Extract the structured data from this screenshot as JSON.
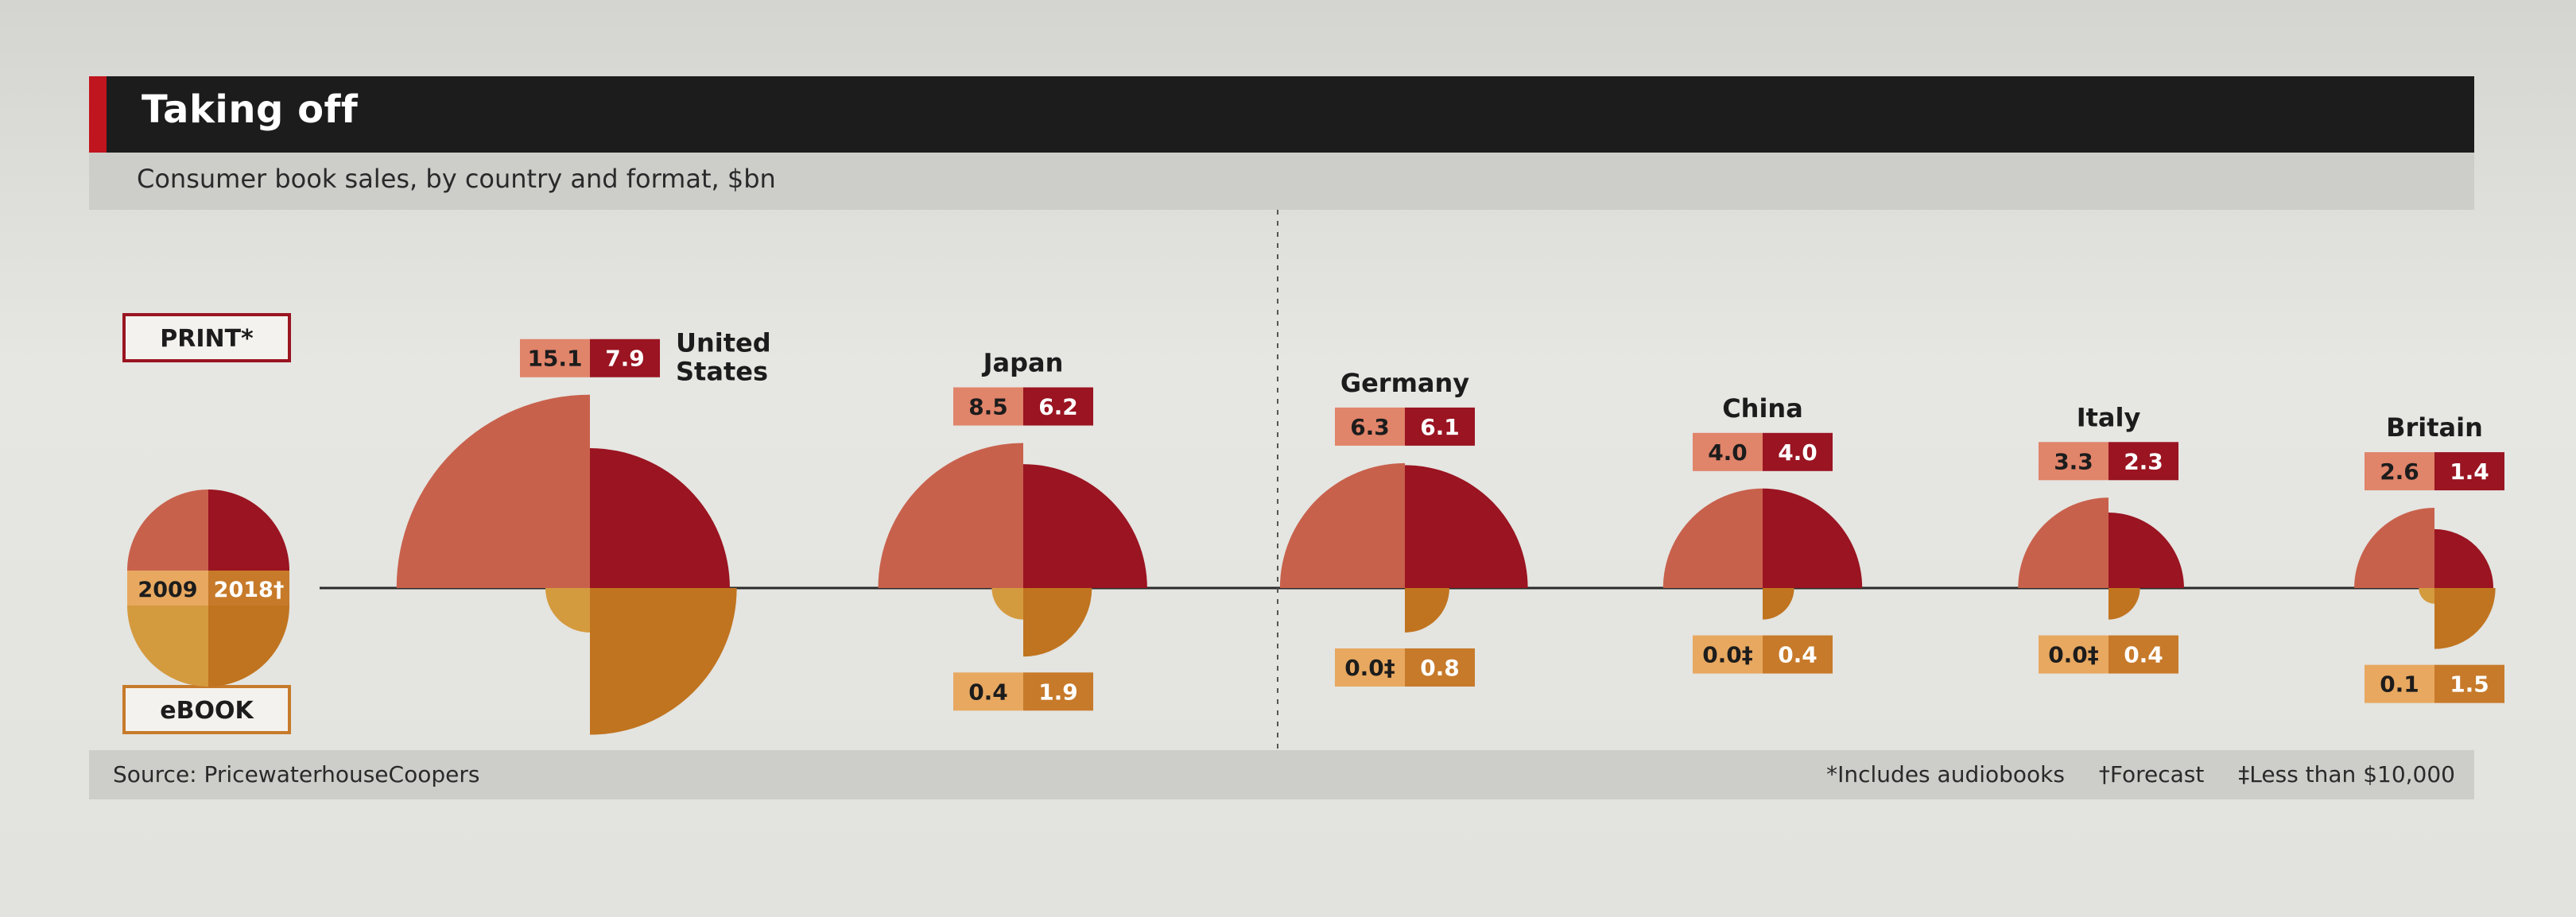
{
  "header": {
    "title": "Taking off",
    "subtitle": "Consumer book sales, by country and format, $bn"
  },
  "legend": {
    "print_label": "PRINT*",
    "ebook_label": "eBOOK",
    "year_2009": "2009",
    "year_2018": "2018†"
  },
  "footer": {
    "source": "Source: PricewaterhouseCoopers",
    "note_audiobooks": "*Includes audiobooks",
    "note_forecast": "†Forecast",
    "note_less_than": "‡Less than $10,000"
  },
  "colors": {
    "print_2009": "#c8614c",
    "print_2018": "#9a1421",
    "ebook_2009": "#d49a3e",
    "ebook_2018": "#c0741f",
    "label_2009": "#e0846a",
    "label_2018": "#9a1421",
    "ebook_label_2009": "#e8a860",
    "ebook_label_2018": "#c77a2a"
  },
  "chart_data": {
    "type": "pie",
    "title": "Taking off",
    "subtitle": "Consumer book sales, by country and format, $bn",
    "units": "$bn",
    "countries": [
      {
        "name": "United\nStates",
        "print_2009": "15.1",
        "print_2018": "7.9",
        "ebook_2009": "0.8",
        "ebook_2018": "8.7"
      },
      {
        "name": "Japan",
        "print_2009": "8.5",
        "print_2018": "6.2",
        "ebook_2009": "0.4",
        "ebook_2018": "1.9"
      },
      {
        "name": "Germany",
        "print_2009": "6.3",
        "print_2018": "6.1",
        "ebook_2009": "0.0‡",
        "ebook_2018": "0.8"
      },
      {
        "name": "China",
        "print_2009": "4.0",
        "print_2018": "4.0",
        "ebook_2009": "0.0‡",
        "ebook_2018": "0.4"
      },
      {
        "name": "Italy",
        "print_2009": "3.3",
        "print_2018": "2.3",
        "ebook_2009": "0.0‡",
        "ebook_2018": "0.4"
      },
      {
        "name": "Britain",
        "print_2009": "2.6",
        "print_2018": "1.4",
        "ebook_2009": "0.1",
        "ebook_2018": "1.5"
      }
    ]
  }
}
